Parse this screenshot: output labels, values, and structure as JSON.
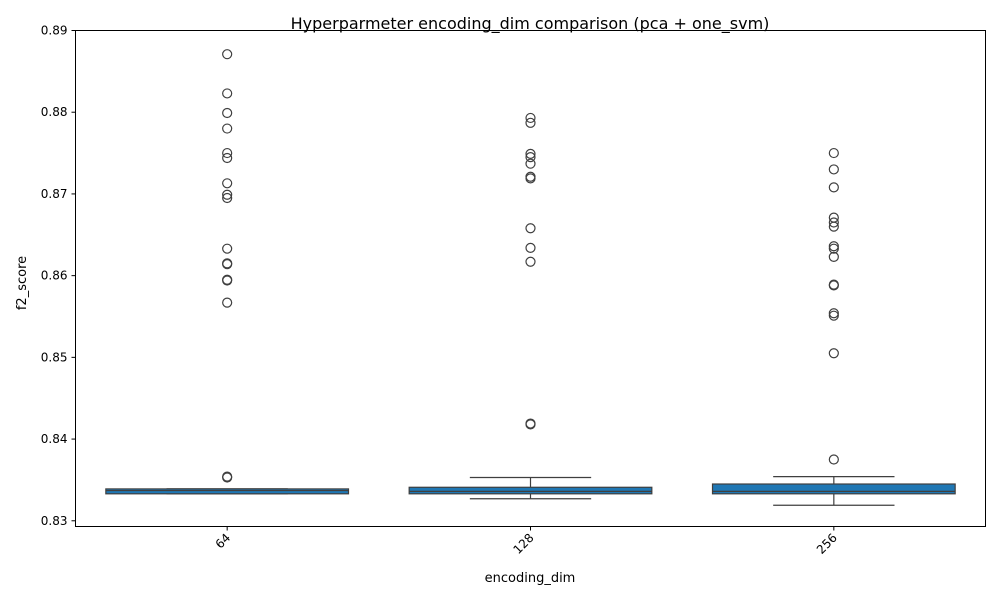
{
  "chart_data": {
    "type": "box",
    "title": "Hyperparmeter encoding_dim comparison (pca + one_svm)",
    "xlabel": "encoding_dim",
    "ylabel": "f2_score",
    "categories": [
      "64",
      "128",
      "256"
    ],
    "ylim": [
      0.8293,
      0.89
    ],
    "yticks": [
      0.83,
      0.84,
      0.85,
      0.86,
      0.87,
      0.88,
      0.89
    ],
    "ytick_labels": [
      "0.83",
      "0.84",
      "0.85",
      "0.86",
      "0.87",
      "0.88",
      "0.89"
    ],
    "grid": false,
    "box_color": "#1f77b4",
    "boxes": [
      {
        "category": "64",
        "whisker_low": 0.8333,
        "q1": 0.8333,
        "median": 0.8337,
        "q3": 0.8339,
        "whisker_high": 0.8339,
        "outliers": [
          0.8871,
          0.8823,
          0.8799,
          0.878,
          0.875,
          0.8744,
          0.8713,
          0.8699,
          0.8695,
          0.8633,
          0.8615,
          0.8614,
          0.8595,
          0.8594,
          0.8567,
          0.8354,
          0.8353
        ]
      },
      {
        "category": "128",
        "whisker_low": 0.8327,
        "q1": 0.8333,
        "median": 0.8336,
        "q3": 0.8341,
        "whisker_high": 0.8353,
        "outliers": [
          0.8793,
          0.8787,
          0.8749,
          0.8745,
          0.8737,
          0.8721,
          0.8719,
          0.8658,
          0.8634,
          0.8617,
          0.8419,
          0.8418
        ]
      },
      {
        "category": "256",
        "whisker_low": 0.8319,
        "q1": 0.8333,
        "median": 0.8336,
        "q3": 0.8345,
        "whisker_high": 0.8354,
        "outliers": [
          0.875,
          0.873,
          0.8708,
          0.8671,
          0.8665,
          0.866,
          0.8636,
          0.8633,
          0.8623,
          0.8589,
          0.8588,
          0.8554,
          0.8551,
          0.8505,
          0.8375
        ]
      }
    ]
  }
}
